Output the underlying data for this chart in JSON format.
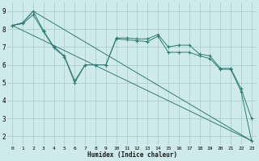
{
  "xlabel": "Humidex (Indice chaleur)",
  "background_color": "#ceeaea",
  "grid_color": "#aecece",
  "line_color": "#2e7d72",
  "xlim": [
    -0.5,
    23.5
  ],
  "ylim": [
    1.5,
    9.5
  ],
  "yticks": [
    2,
    3,
    4,
    5,
    6,
    7,
    8,
    9
  ],
  "xticks": [
    0,
    1,
    2,
    3,
    4,
    5,
    6,
    7,
    8,
    9,
    10,
    11,
    12,
    13,
    14,
    15,
    16,
    17,
    18,
    19,
    20,
    21,
    22,
    23
  ],
  "series": [
    {
      "x": [
        0,
        23
      ],
      "y": [
        8.2,
        1.75
      ],
      "marker": false
    },
    {
      "x": [
        0,
        1,
        2,
        23
      ],
      "y": [
        8.2,
        8.35,
        9.0,
        1.75
      ],
      "marker": false
    },
    {
      "x": [
        0,
        1,
        2,
        3,
        4,
        5,
        6,
        7,
        8,
        9,
        10,
        11,
        12,
        13,
        14,
        15,
        16,
        17,
        18,
        19,
        20,
        21,
        22,
        23
      ],
      "y": [
        8.2,
        8.35,
        9.0,
        7.9,
        7.0,
        6.5,
        5.1,
        6.0,
        6.0,
        6.0,
        7.5,
        7.5,
        7.45,
        7.45,
        7.7,
        7.0,
        7.1,
        7.1,
        6.6,
        6.5,
        5.8,
        5.8,
        4.65,
        3.0
      ],
      "marker": true
    },
    {
      "x": [
        0,
        1,
        2,
        3,
        4,
        5,
        6,
        7,
        8,
        9,
        10,
        11,
        12,
        13,
        14,
        15,
        16,
        17,
        18,
        19,
        20,
        21,
        22,
        23
      ],
      "y": [
        8.2,
        8.3,
        8.8,
        7.85,
        6.95,
        6.45,
        5.0,
        6.0,
        6.0,
        6.0,
        7.45,
        7.4,
        7.35,
        7.3,
        7.6,
        6.7,
        6.7,
        6.7,
        6.5,
        6.35,
        5.75,
        5.75,
        4.5,
        1.75
      ],
      "marker": true
    }
  ]
}
